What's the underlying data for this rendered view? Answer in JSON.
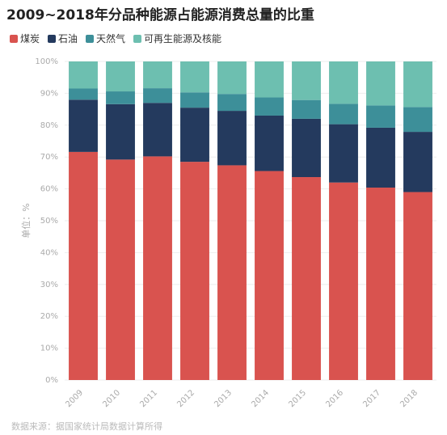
{
  "chart_data": {
    "type": "bar",
    "stacked": true,
    "title": "2009~2018年分品种能源占能源消费总量的比重",
    "ylabel": "单位：%",
    "xlabel": "",
    "ylim": [
      0,
      100
    ],
    "yticks": [
      "0%",
      "10%",
      "20%",
      "30%",
      "40%",
      "50%",
      "60%",
      "70%",
      "80%",
      "90%",
      "100%"
    ],
    "categories": [
      "2009",
      "2010",
      "2011",
      "2012",
      "2013",
      "2014",
      "2015",
      "2016",
      "2017",
      "2018"
    ],
    "series": [
      {
        "name": "煤炭",
        "color": "#d9534f",
        "values": [
          71.6,
          69.2,
          70.2,
          68.5,
          67.4,
          65.6,
          63.7,
          62.0,
          60.4,
          59.0
        ]
      },
      {
        "name": "石油",
        "color": "#243a5e",
        "values": [
          16.4,
          17.4,
          16.8,
          17.0,
          17.1,
          17.4,
          18.3,
          18.3,
          18.8,
          18.9
        ]
      },
      {
        "name": "天然气",
        "color": "#3d8f99",
        "values": [
          3.5,
          4.0,
          4.6,
          4.8,
          5.3,
          5.7,
          5.9,
          6.4,
          7.0,
          7.8
        ]
      },
      {
        "name": "可再生能源及核能",
        "color": "#6dbfb0",
        "values": [
          8.5,
          9.4,
          8.4,
          9.7,
          10.2,
          11.3,
          12.1,
          13.3,
          13.8,
          14.3
        ]
      }
    ],
    "grid": true,
    "legend": "top-left"
  },
  "source": "数据来源：据国家统计局数据计算所得"
}
